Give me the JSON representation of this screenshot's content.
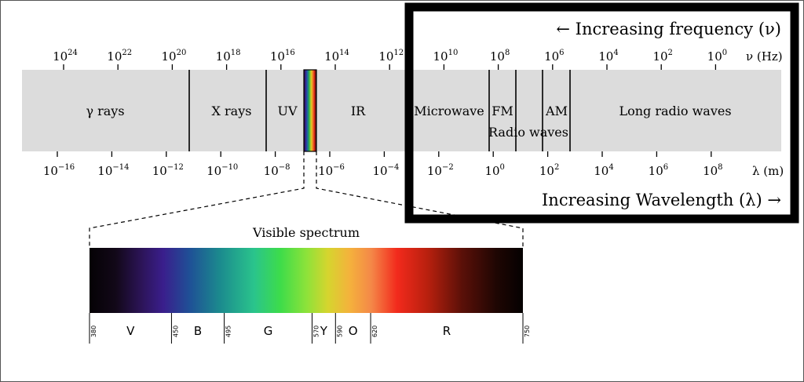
{
  "frequency_axis": {
    "unit_label": "ν (Hz)",
    "ticks": [
      {
        "base": "10",
        "exp": "24"
      },
      {
        "base": "10",
        "exp": "22"
      },
      {
        "base": "10",
        "exp": "20"
      },
      {
        "base": "10",
        "exp": "18"
      },
      {
        "base": "10",
        "exp": "16"
      },
      {
        "base": "10",
        "exp": "14"
      },
      {
        "base": "10",
        "exp": "12"
      },
      {
        "base": "10",
        "exp": "10"
      },
      {
        "base": "10",
        "exp": "8"
      },
      {
        "base": "10",
        "exp": "6"
      },
      {
        "base": "10",
        "exp": "4"
      },
      {
        "base": "10",
        "exp": "2"
      },
      {
        "base": "10",
        "exp": "0"
      }
    ]
  },
  "wavelength_axis": {
    "unit_label": "λ (m)",
    "ticks": [
      {
        "base": "10",
        "exp": "−16"
      },
      {
        "base": "10",
        "exp": "−14"
      },
      {
        "base": "10",
        "exp": "−12"
      },
      {
        "base": "10",
        "exp": "−10"
      },
      {
        "base": "10",
        "exp": "−8"
      },
      {
        "base": "10",
        "exp": "−6"
      },
      {
        "base": "10",
        "exp": "−4"
      },
      {
        "base": "10",
        "exp": "−2"
      },
      {
        "base": "10",
        "exp": "0"
      },
      {
        "base": "10",
        "exp": "2"
      },
      {
        "base": "10",
        "exp": "4"
      },
      {
        "base": "10",
        "exp": "6"
      },
      {
        "base": "10",
        "exp": "8"
      }
    ]
  },
  "bands": {
    "gamma": "γ rays",
    "xray": "X rays",
    "uv": "UV",
    "ir": "IR",
    "microwave": "Microwave",
    "fm": "FM",
    "am": "AM",
    "radio": "Radio waves",
    "long_radio": "Long radio waves"
  },
  "inset": {
    "frequency_arrow": "← Increasing frequency (ν)",
    "wavelength_arrow": "Increasing Wavelength (λ) →"
  },
  "visible": {
    "title": "Visible spectrum",
    "wavelength_ticks": [
      "380",
      "450",
      "495",
      "570",
      "590",
      "620",
      "750"
    ],
    "color_names": [
      "V",
      "B",
      "G",
      "Y",
      "O",
      "R"
    ]
  },
  "colors": {
    "band_fill": "#dcdcdc",
    "inset_border": "#000000"
  }
}
